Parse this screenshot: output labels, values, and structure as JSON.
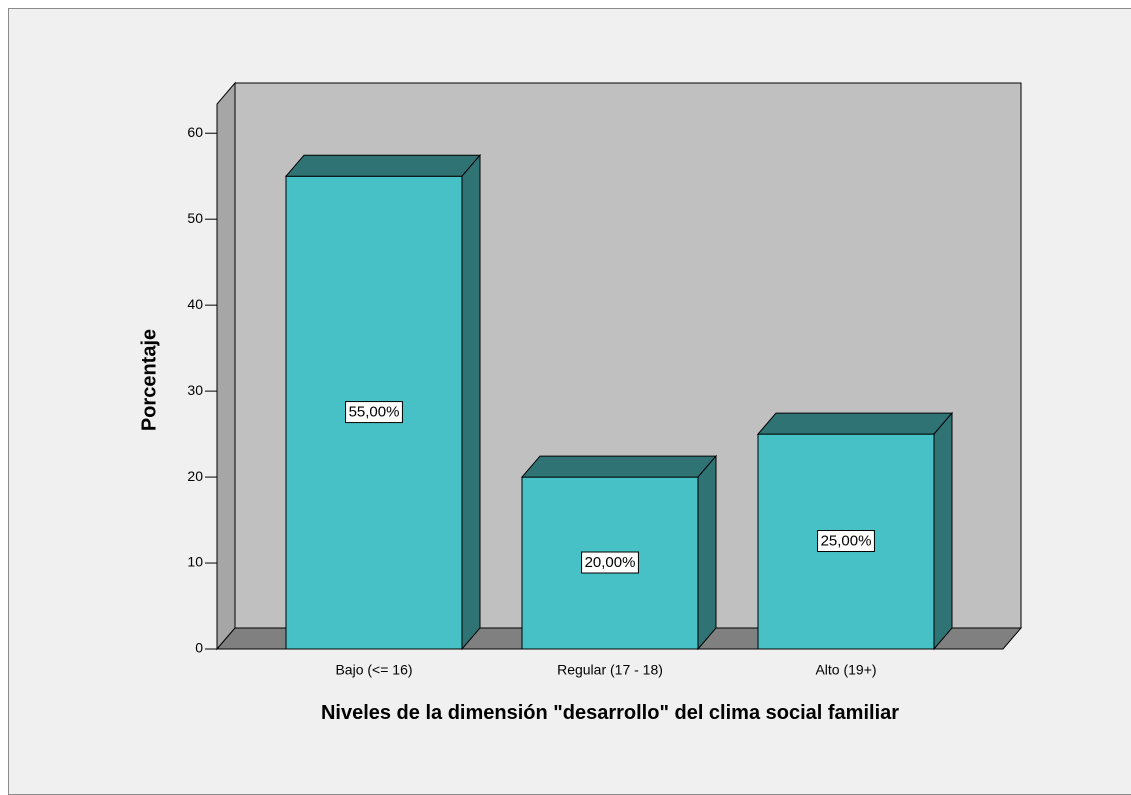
{
  "chart_data": {
    "type": "bar3d",
    "xlabel": "Niveles de la dimensión \"desarrollo\" del clima social familiar",
    "ylabel": "Porcentaje",
    "categories": [
      "Bajo (<= 16)",
      "Regular (17 - 18)",
      "Alto (19+)"
    ],
    "values": [
      55,
      20,
      25
    ],
    "value_labels": [
      "55,00%",
      "20,00%",
      "25,00%"
    ],
    "color": "#48c1c6",
    "ylim": [
      0,
      63.4
    ],
    "yticks": [
      0,
      10,
      20,
      30,
      40,
      50,
      60
    ]
  }
}
